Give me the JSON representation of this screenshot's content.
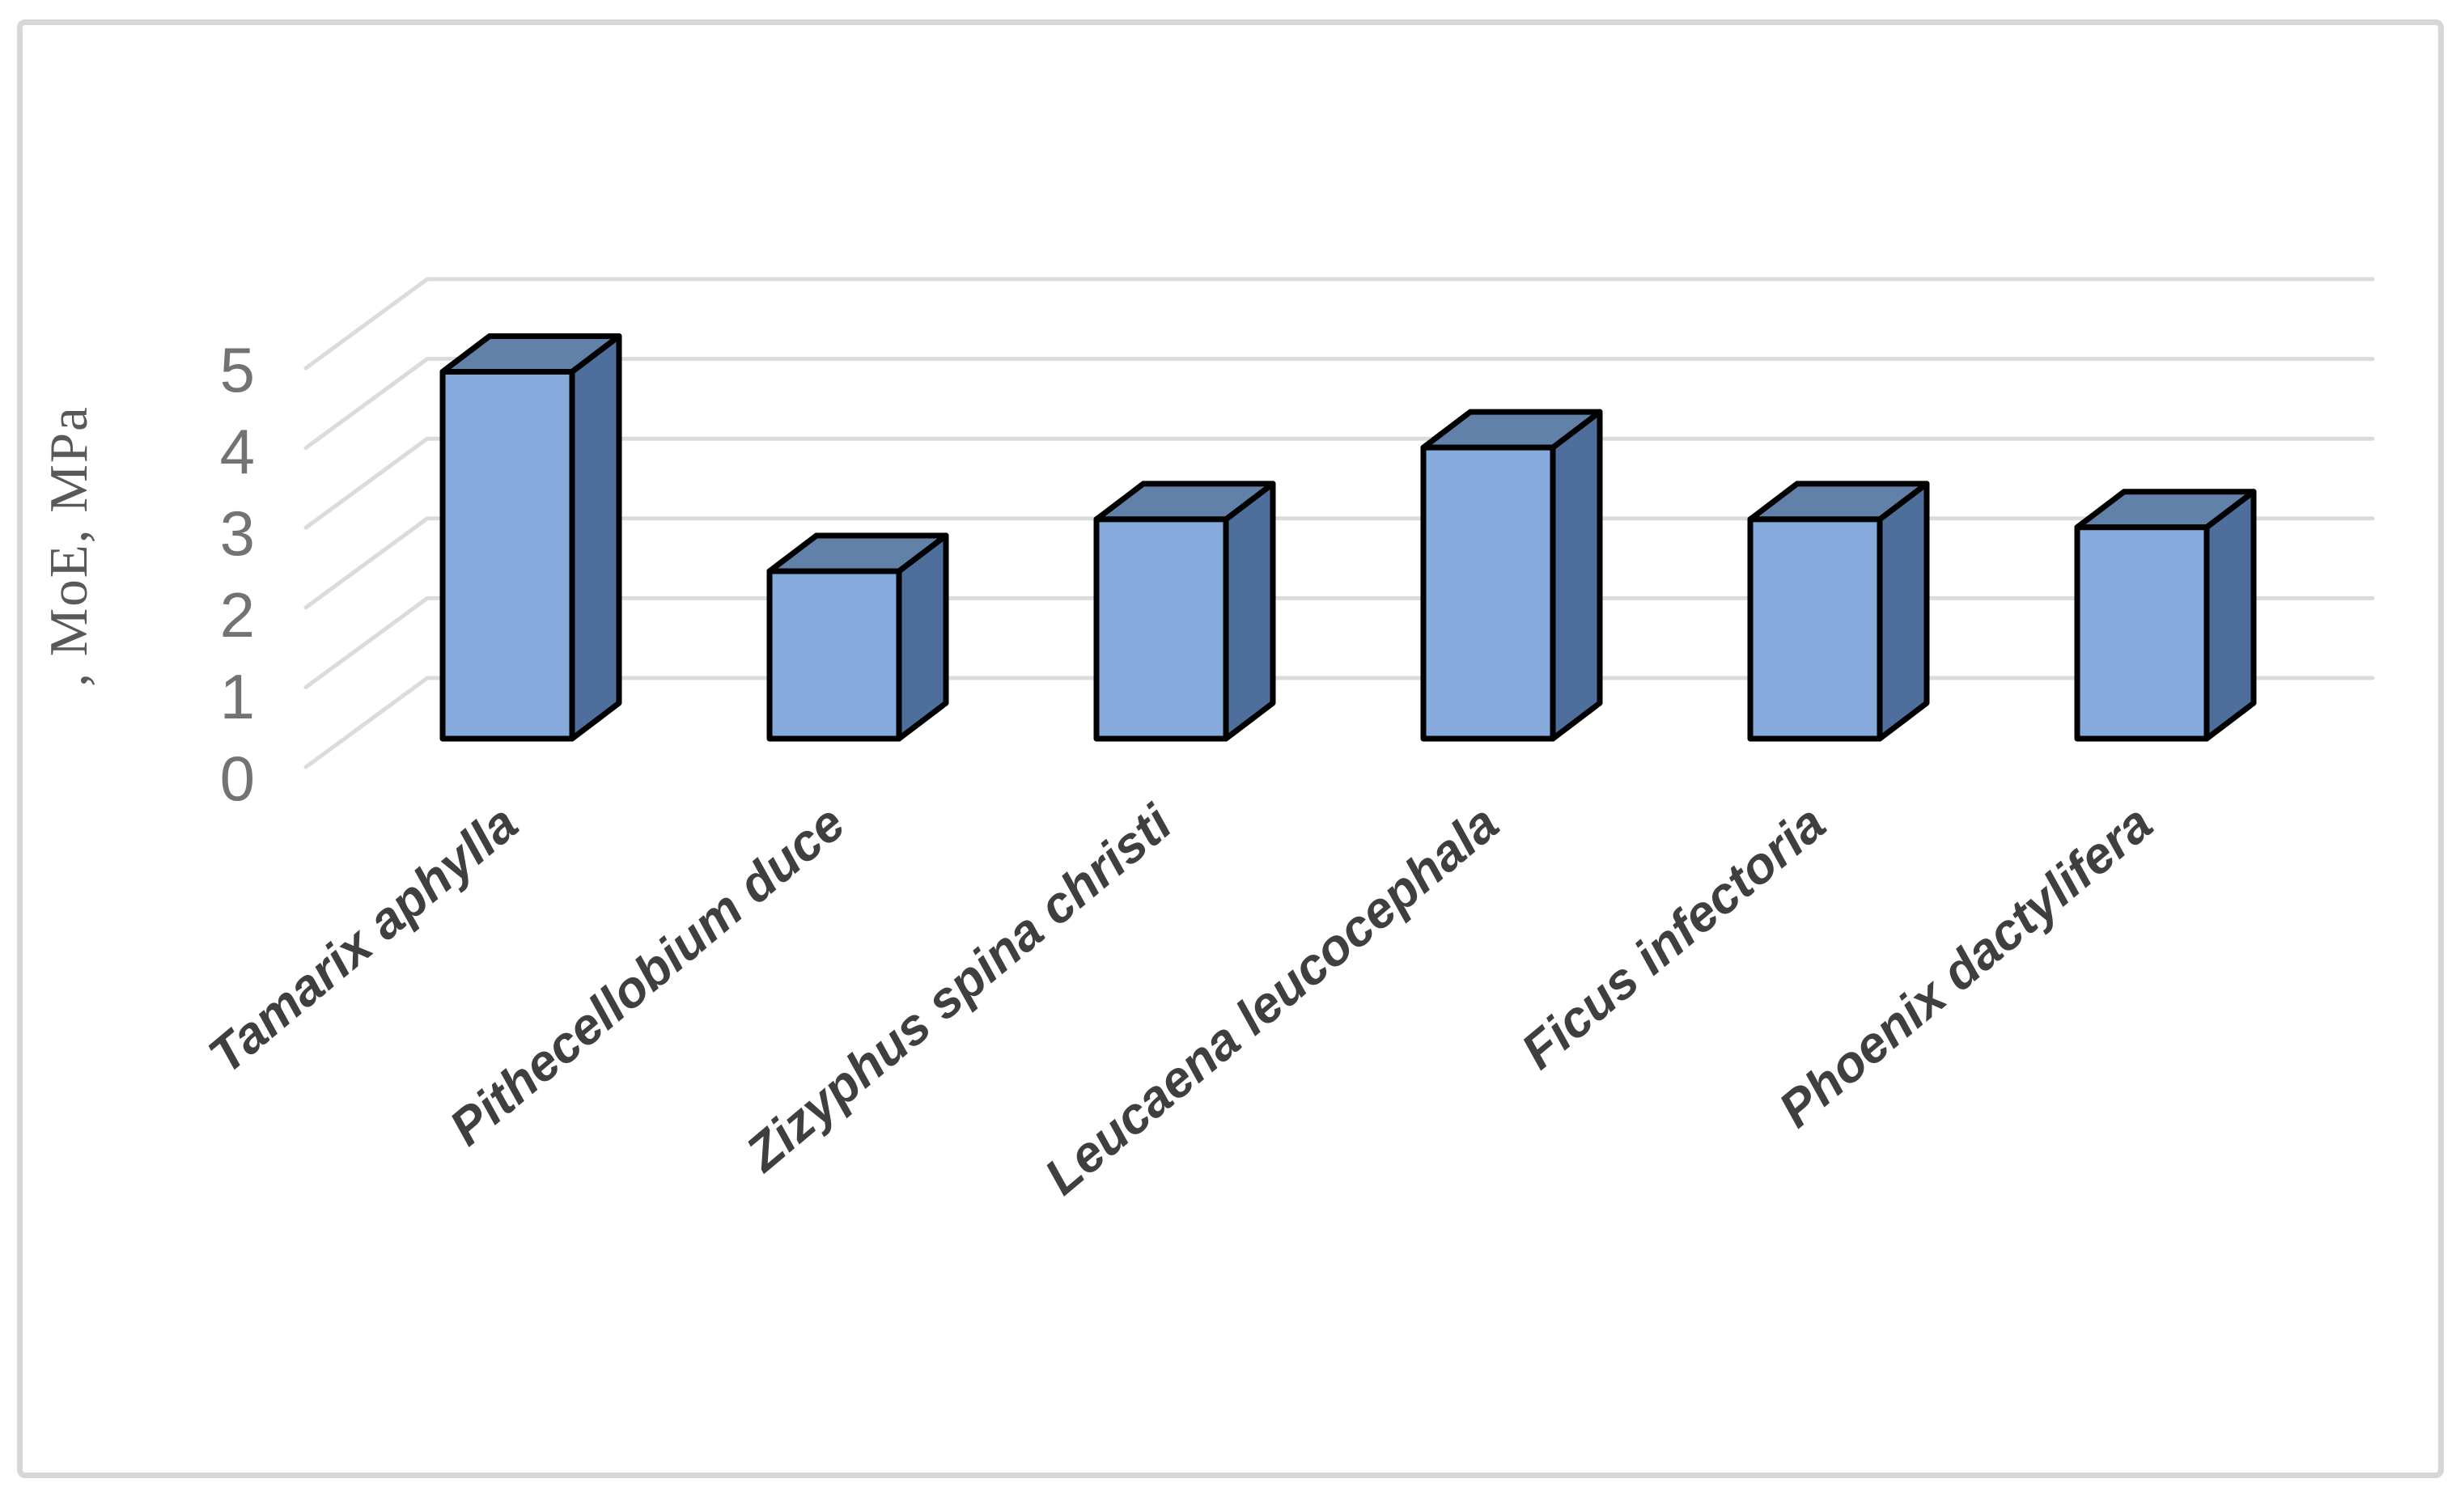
{
  "chart_data": {
    "type": "bar",
    "style": "3d-column",
    "title": "",
    "categories": [
      "Tamarix aphylla",
      "Pithecellobium duce",
      "Zizyphus spina christi",
      "Leucaena leucocephala",
      "Ficus infectoria",
      "Phoenix dactylifera"
    ],
    "values": [
      4.6,
      2.1,
      2.75,
      3.65,
      2.75,
      2.65
    ],
    "xlabel": "",
    "ylabel": ", MoE, MPa",
    "y_ticks": [
      "0",
      "1",
      "2",
      "3",
      "4",
      "5"
    ],
    "ylim": [
      0,
      5
    ],
    "grid": true,
    "legend": false,
    "colors": {
      "bar_front": "#85aadb",
      "bar_top": "#6181a9",
      "bar_side": "#4e6e9b",
      "bar_outline": "#000000",
      "gridline": "#dbdbdb",
      "tick_text": "#737373",
      "category_text": "#3f3f3f",
      "axis_title_text": "#595959",
      "frame_border": "#d7d7d7",
      "background": "#ffffff"
    }
  }
}
